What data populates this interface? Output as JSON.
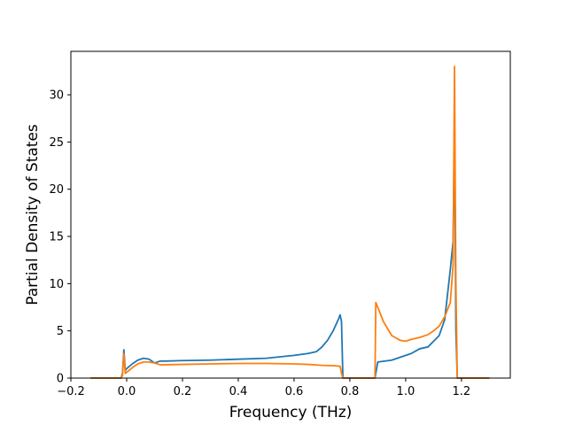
{
  "chart_data": {
    "type": "line",
    "title": "",
    "xlabel": "Frequency (THz)",
    "ylabel": "Partial Density of States",
    "xlim": [
      -0.2,
      1.375
    ],
    "ylim": [
      0,
      34.6
    ],
    "xticks": [
      -0.2,
      0.0,
      0.2,
      0.4,
      0.6,
      0.8,
      1.0,
      1.2
    ],
    "xtick_labels": [
      "−0.2",
      "0.0",
      "0.2",
      "0.4",
      "0.6",
      "0.8",
      "1.0",
      "1.2"
    ],
    "yticks": [
      0,
      5,
      10,
      15,
      20,
      25,
      30
    ],
    "ytick_labels": [
      "0",
      "5",
      "10",
      "15",
      "20",
      "25",
      "30"
    ],
    "grid": false,
    "series": [
      {
        "color": "#1f77b4",
        "x": [
          -0.13,
          -0.02,
          -0.015,
          -0.01,
          -0.005,
          0.0,
          0.02,
          0.04,
          0.06,
          0.08,
          0.1,
          0.12,
          0.14,
          0.2,
          0.3,
          0.4,
          0.5,
          0.6,
          0.65,
          0.68,
          0.7,
          0.72,
          0.74,
          0.76,
          0.765,
          0.77,
          0.775,
          0.8,
          0.88,
          0.89,
          0.9,
          0.95,
          1.0,
          1.02,
          1.05,
          1.08,
          1.1,
          1.12,
          1.14,
          1.16,
          1.17,
          1.175,
          1.18,
          1.185,
          1.3
        ],
        "y": [
          0,
          0,
          0.5,
          3.0,
          0.8,
          1.0,
          1.5,
          1.9,
          2.1,
          2.0,
          1.6,
          1.8,
          1.8,
          1.85,
          1.9,
          2.0,
          2.1,
          2.4,
          2.6,
          2.8,
          3.3,
          4.0,
          5.0,
          6.3,
          6.7,
          6.0,
          0,
          0,
          0,
          0,
          1.7,
          1.9,
          2.4,
          2.6,
          3.1,
          3.3,
          3.9,
          4.5,
          6.2,
          11.5,
          14.5,
          26.5,
          5.0,
          0,
          0
        ]
      },
      {
        "color": "#ff7f0e",
        "x": [
          -0.13,
          -0.02,
          -0.015,
          -0.01,
          -0.005,
          0.0,
          0.02,
          0.04,
          0.06,
          0.08,
          0.1,
          0.12,
          0.2,
          0.3,
          0.4,
          0.5,
          0.6,
          0.65,
          0.7,
          0.75,
          0.765,
          0.77,
          0.775,
          0.8,
          0.88,
          0.89,
          0.893,
          0.9,
          0.92,
          0.95,
          0.98,
          1.0,
          1.02,
          1.05,
          1.08,
          1.1,
          1.12,
          1.14,
          1.16,
          1.17,
          1.175,
          1.18,
          1.185,
          1.3
        ],
        "y": [
          0,
          0,
          0.3,
          2.6,
          0.5,
          0.6,
          1.1,
          1.5,
          1.7,
          1.7,
          1.6,
          1.4,
          1.45,
          1.5,
          1.55,
          1.55,
          1.5,
          1.45,
          1.35,
          1.3,
          1.25,
          0.5,
          0,
          0,
          0,
          0,
          8.0,
          7.5,
          6.0,
          4.5,
          4.0,
          3.9,
          4.1,
          4.3,
          4.6,
          5.0,
          5.5,
          6.5,
          8.0,
          12.0,
          33.0,
          10.0,
          0,
          0
        ]
      }
    ]
  }
}
